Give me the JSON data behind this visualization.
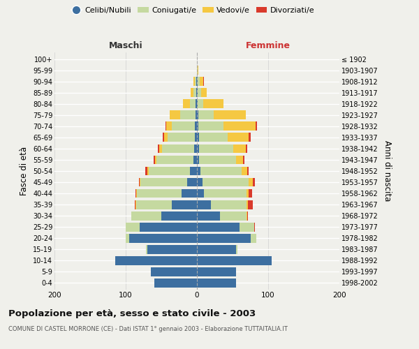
{
  "age_groups": [
    "0-4",
    "5-9",
    "10-14",
    "15-19",
    "20-24",
    "25-29",
    "30-34",
    "35-39",
    "40-44",
    "45-49",
    "50-54",
    "55-59",
    "60-64",
    "65-69",
    "70-74",
    "75-79",
    "80-84",
    "85-89",
    "90-94",
    "95-99",
    "100+"
  ],
  "birth_years": [
    "1998-2002",
    "1993-1997",
    "1988-1992",
    "1983-1987",
    "1978-1982",
    "1973-1977",
    "1968-1972",
    "1963-1967",
    "1958-1962",
    "1953-1957",
    "1948-1952",
    "1943-1947",
    "1938-1942",
    "1933-1937",
    "1928-1932",
    "1923-1927",
    "1918-1922",
    "1913-1917",
    "1908-1912",
    "1903-1907",
    "≤ 1902"
  ],
  "males": {
    "celibi": [
      60,
      65,
      115,
      70,
      95,
      80,
      50,
      35,
      22,
      14,
      10,
      5,
      4,
      3,
      3,
      2,
      2,
      1,
      1,
      0,
      0
    ],
    "coniugati": [
      0,
      0,
      0,
      2,
      5,
      20,
      42,
      50,
      62,
      65,
      58,
      52,
      45,
      38,
      32,
      22,
      8,
      4,
      2,
      0,
      0
    ],
    "vedovi": [
      0,
      0,
      0,
      0,
      0,
      0,
      0,
      1,
      1,
      1,
      2,
      2,
      4,
      5,
      8,
      14,
      10,
      4,
      2,
      0,
      0
    ],
    "divorziati": [
      0,
      0,
      0,
      0,
      0,
      0,
      0,
      1,
      1,
      1,
      3,
      2,
      2,
      2,
      1,
      0,
      0,
      0,
      0,
      0,
      0
    ]
  },
  "females": {
    "nubili": [
      55,
      55,
      105,
      55,
      75,
      60,
      32,
      20,
      10,
      8,
      5,
      3,
      3,
      3,
      2,
      2,
      1,
      1,
      1,
      0,
      0
    ],
    "coniugate": [
      0,
      0,
      0,
      2,
      8,
      20,
      38,
      50,
      60,
      65,
      58,
      52,
      48,
      40,
      35,
      22,
      8,
      5,
      3,
      1,
      0
    ],
    "vedove": [
      0,
      0,
      0,
      0,
      0,
      0,
      1,
      2,
      3,
      5,
      8,
      10,
      18,
      30,
      45,
      45,
      28,
      8,
      5,
      1,
      0
    ],
    "divorziate": [
      0,
      0,
      0,
      0,
      0,
      1,
      1,
      6,
      4,
      3,
      2,
      2,
      2,
      2,
      2,
      0,
      0,
      0,
      1,
      0,
      0
    ]
  },
  "colors": {
    "celibi": "#3d6fa0",
    "coniugati": "#c5d9a0",
    "vedovi": "#f5c842",
    "divorziati": "#d93a2b"
  },
  "legend_labels": [
    "Celibi/Nubili",
    "Coniugati/e",
    "Vedovi/e",
    "Divorziati/e"
  ],
  "title": "Popolazione per età, sesso e stato civile - 2003",
  "subtitle": "COMUNE DI CASTEL MORRONE (CE) - Dati ISTAT 1° gennaio 2003 - Elaborazione TUTTAITALIA.IT",
  "ylabel_left": "Fasce di età",
  "ylabel_right": "Anni di nascita",
  "xlabel_left": "Maschi",
  "xlabel_right": "Femmine",
  "xlim": 200,
  "background_color": "#f0f0eb"
}
